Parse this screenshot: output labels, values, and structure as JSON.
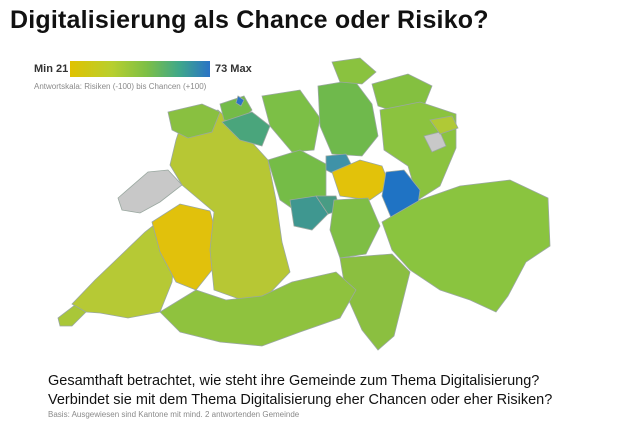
{
  "title": "Digitalisierung als Chance oder Risiko?",
  "legend": {
    "min_label": "Min 21",
    "max_label": "73 Max",
    "scale_note": "Antwortskala: Risiken (-100) bis Chancen (+100)",
    "colors": {
      "low": "#e0c200",
      "mid": "#7cbf46",
      "high": "#2a73c6",
      "no_data": "#c8c8c8"
    }
  },
  "question_line1": "Gesamthaft betrachtet, wie steht ihre Gemeinde zum Thema Digitalisierung?",
  "question_line2": "Verbindet sie mit dem Thema Digitalisierung eher Chancen oder eher Risiken?",
  "basis_note": "Basis: Ausgewiesen sind Kantone mit mind. 2 antwortenden Gemeinde"
}
